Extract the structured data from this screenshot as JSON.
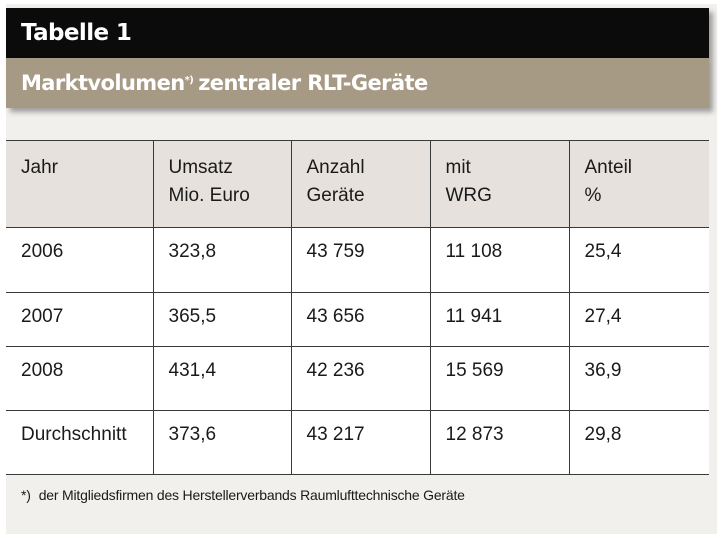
{
  "header": {
    "title": "Tabelle 1",
    "subtitle_main": "Marktvolumen",
    "subtitle_mark": "*)",
    "subtitle_rest": "zentraler RLT-Geräte"
  },
  "table": {
    "columns": [
      {
        "line1": "Jahr",
        "line2": ""
      },
      {
        "line1": "Umsatz",
        "line2": "Mio. Euro"
      },
      {
        "line1": "Anzahl",
        "line2": "Geräte"
      },
      {
        "line1": "mit",
        "line2": "WRG"
      },
      {
        "line1": "Anteil",
        "line2": "%"
      }
    ],
    "rows": [
      [
        "2006",
        "323,8",
        "43 759",
        "11 108",
        "25,4"
      ],
      [
        "2007",
        "365,5",
        "43 656",
        "11 941",
        "27,4"
      ],
      [
        "2008",
        "431,4",
        "42 236",
        "15 569",
        "36,9"
      ],
      [
        "Durchschnitt",
        "373,6",
        "43 217",
        "12 873",
        "29,8"
      ]
    ]
  },
  "footnote": {
    "mark": "*)",
    "text": "der Mitgliedsfirmen des Herstellerverbands Raumlufttechnische Geräte"
  }
}
